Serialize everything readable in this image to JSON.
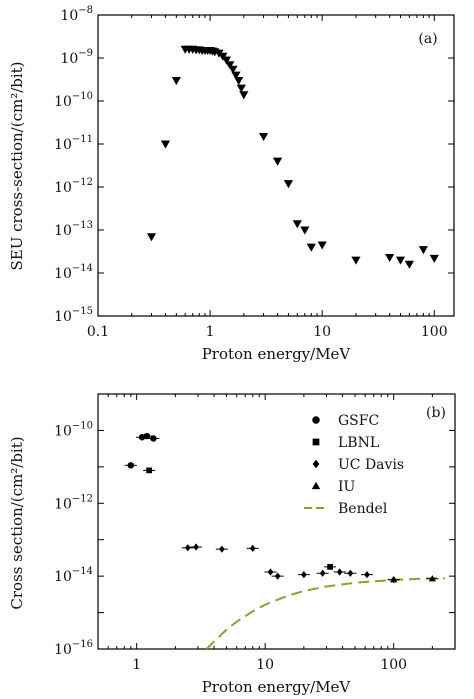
{
  "chart_data": [
    {
      "type": "scatter",
      "panel_label": "(a)",
      "xlabel": "Proton energy/MeV",
      "ylabel": "SEU cross-section/(cm²/bit)",
      "xscale": "log",
      "yscale": "log",
      "xlim": [
        0.1,
        150
      ],
      "ylim": [
        1e-15,
        1e-08
      ],
      "x_tick_labels": [
        {
          "v": 0.1,
          "t": "0.1"
        },
        {
          "v": 1,
          "t": "1"
        },
        {
          "v": 10,
          "t": "10"
        },
        {
          "v": 100,
          "t": "100"
        }
      ],
      "y_tick_labels": [
        {
          "v": 1e-15,
          "b": "10",
          "e": "−15"
        },
        {
          "v": 1e-14,
          "b": "10",
          "e": "−14"
        },
        {
          "v": 1e-13,
          "b": "10",
          "e": "−13"
        },
        {
          "v": 1e-12,
          "b": "10",
          "e": "−12"
        },
        {
          "v": 1e-11,
          "b": "10",
          "e": "−11"
        },
        {
          "v": 1e-10,
          "b": "10",
          "e": "−10"
        },
        {
          "v": 1e-09,
          "b": "10",
          "e": "−9"
        },
        {
          "v": 1e-08,
          "b": "10",
          "e": "−8"
        }
      ],
      "grid": false,
      "series": [
        {
          "marker": "triangle-down",
          "x": [
            0.3,
            0.4,
            0.5,
            0.6,
            0.65,
            0.7,
            0.75,
            0.8,
            0.85,
            0.9,
            0.95,
            1.0,
            1.05,
            1.1,
            1.2,
            1.3,
            1.4,
            1.5,
            1.6,
            1.7,
            1.8,
            1.9,
            2.0,
            3.0,
            4.0,
            5.0,
            6.0,
            7.0,
            8.0,
            10.0,
            20.0,
            40.0,
            50.0,
            60.0,
            80.0,
            100.0
          ],
          "y": [
            7e-14,
            1e-11,
            3e-10,
            1.6e-09,
            1.6e-09,
            1.6e-09,
            1.55e-09,
            1.55e-09,
            1.5e-09,
            1.5e-09,
            1.5e-09,
            1.5e-09,
            1.45e-09,
            1.4e-09,
            1.3e-09,
            1.1e-09,
            9e-10,
            7e-10,
            5.5e-10,
            4e-10,
            3e-10,
            2e-10,
            1.4e-10,
            1.5e-11,
            4e-12,
            1.2e-12,
            1.4e-13,
            1e-13,
            4e-14,
            4.5e-14,
            2e-14,
            2.3e-14,
            2e-14,
            1.6e-14,
            3.5e-14,
            2.2e-14
          ]
        }
      ]
    },
    {
      "type": "scatter",
      "panel_label": "(b)",
      "xlabel": "Proton energy/MeV",
      "ylabel": "Cross section/(cm²/bit)",
      "xscale": "log",
      "yscale": "log",
      "xlim": [
        0.5,
        300
      ],
      "ylim": [
        1e-16,
        1e-09
      ],
      "x_tick_labels": [
        {
          "v": 1,
          "t": "1"
        },
        {
          "v": 10,
          "t": "10"
        },
        {
          "v": 100,
          "t": "100"
        }
      ],
      "y_tick_labels": [
        {
          "v": 1e-16,
          "b": "10",
          "e": "−16"
        },
        {
          "v": 1e-14,
          "b": "10",
          "e": "−14"
        },
        {
          "v": 1e-12,
          "b": "10",
          "e": "−12"
        },
        {
          "v": 1e-10,
          "b": "10",
          "e": "−10"
        }
      ],
      "legend_position": "top-right",
      "grid": false,
      "series": [
        {
          "name": "GSFC",
          "marker": "circle",
          "x": [
            0.9,
            1.1,
            1.2,
            1.35
          ],
          "y": [
            1.1e-11,
            6.5e-11,
            7e-11,
            6e-11
          ]
        },
        {
          "name": "LBNL",
          "marker": "square",
          "x": [
            1.25,
            32.0
          ],
          "y": [
            8e-12,
            1.8e-14
          ]
        },
        {
          "name": "UC Davis",
          "marker": "diamond",
          "x": [
            2.5,
            2.9,
            4.6,
            8.0,
            11.0,
            12.5,
            20.0,
            28.0,
            38.0,
            46.0,
            62.0,
            100.0
          ],
          "y": [
            6e-14,
            6.3e-14,
            5.5e-14,
            5.8e-14,
            1.3e-14,
            1e-14,
            1.1e-14,
            1.2e-14,
            1.3e-14,
            1.2e-14,
            1.1e-14,
            8e-15
          ]
        },
        {
          "name": "IU",
          "marker": "triangle-up",
          "x": [
            100.0,
            200.0
          ],
          "y": [
            8e-15,
            8.5e-15
          ]
        },
        {
          "name": "Bendel",
          "style": "dashed-line",
          "color": "#8ea12e",
          "x": [
            3.5,
            4,
            5,
            6,
            8,
            10,
            15,
            20,
            30,
            50,
            100,
            150,
            200,
            250
          ],
          "y": [
            1e-16,
            1.6e-16,
            3.4e-16,
            5.6e-16,
            1.08e-15,
            1.65e-15,
            2.9e-15,
            3.9e-15,
            5.2e-15,
            6.6e-15,
            7.9e-15,
            8.4e-15,
            8.7e-15,
            8.8e-15
          ]
        }
      ]
    }
  ]
}
